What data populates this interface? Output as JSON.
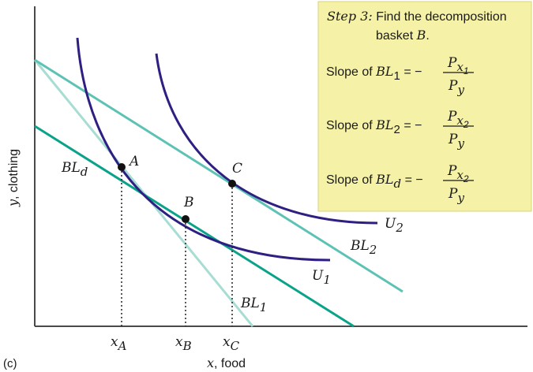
{
  "panel_label": "(c)",
  "axes": {
    "x_label_var": "x",
    "x_label_rest": ", food",
    "y_label_var": "y",
    "y_label_rest": ", clothing"
  },
  "points": {
    "A": "A",
    "B": "B",
    "C": "C"
  },
  "ticks": [
    {
      "base": "x",
      "sub": "A"
    },
    {
      "base": "x",
      "sub": "B"
    },
    {
      "base": "x",
      "sub": "C"
    }
  ],
  "curves": {
    "U1": {
      "base": "U",
      "sub": "1"
    },
    "U2": {
      "base": "U",
      "sub": "2"
    },
    "BL1": {
      "base": "BL",
      "sub": "1"
    },
    "BL2": {
      "base": "BL",
      "sub": "2"
    },
    "BLd": {
      "base": "BL",
      "sub": "d"
    }
  },
  "info_box": {
    "step_prefix": "Step 3:",
    "step_text_1": " Find the decomposition",
    "step_text_2": "basket ",
    "step_basket": "B",
    "step_end": ".",
    "slope_word": "Slope of ",
    "eq": " = −",
    "rows": [
      {
        "bl_sub": "1",
        "num_base": "P",
        "num_sub": "x",
        "num_subsub": "1",
        "den_base": "P",
        "den_sub": "y"
      },
      {
        "bl_sub": "2",
        "num_base": "P",
        "num_sub": "x",
        "num_subsub": "2",
        "den_base": "P",
        "den_sub": "y"
      },
      {
        "bl_sub": "d",
        "num_base": "P",
        "num_sub": "x",
        "num_subsub": "2",
        "den_base": "P",
        "den_sub": "y"
      }
    ]
  },
  "colors": {
    "axis": "#4a4a4a",
    "indifference": "#2e1f82",
    "bl1": "#a8ddd3",
    "bl2": "#5cc3b4",
    "bld": "#0aa38a",
    "box_fill": "#f5f2a8",
    "box_stroke": "#d9d47a"
  }
}
